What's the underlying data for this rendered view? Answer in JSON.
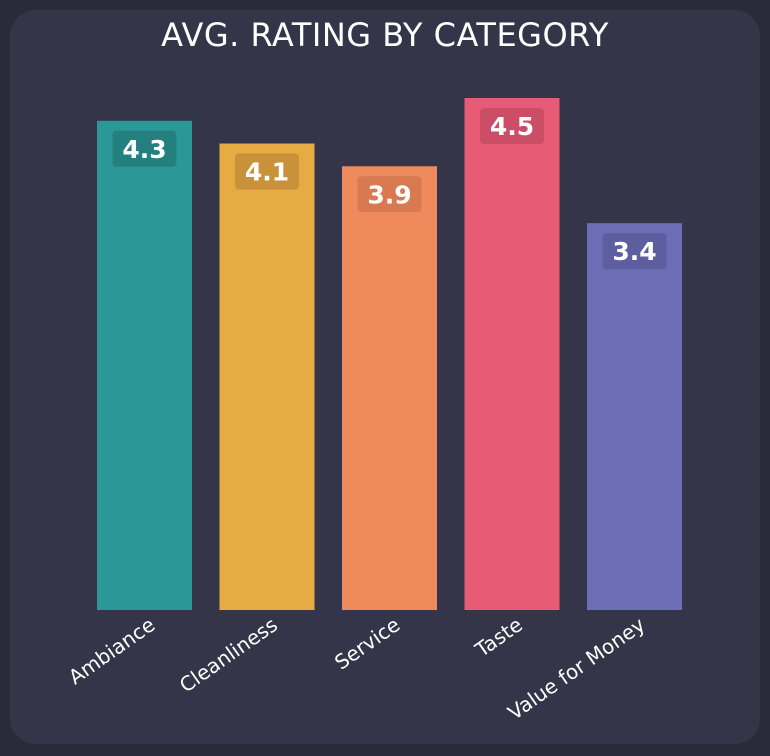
{
  "chart_data": {
    "type": "bar",
    "title": "AVG. RATING BY CATEGORY",
    "xlabel": "",
    "ylabel": "",
    "categories": [
      "Ambiance",
      "Cleanliness",
      "Service",
      "Taste",
      "Value for Money"
    ],
    "values": [
      4.3,
      4.1,
      3.9,
      4.5,
      3.4
    ],
    "value_labels": [
      "4.3",
      "4.1",
      "3.9",
      "4.5",
      "3.4"
    ],
    "colors": [
      "#2b9796",
      "#e6ab42",
      "#ef8a5c",
      "#e75b74",
      "#6b6db5"
    ],
    "label_badge_colors": [
      "#23807f",
      "#c9923a",
      "#d97951",
      "#cc4e66",
      "#5c5ea0"
    ],
    "ylim": [
      0,
      4.5
    ],
    "grid": false,
    "legend": "none"
  },
  "theme": {
    "background": "#2a2b3a",
    "card": "#343548",
    "text": "#ffffff"
  }
}
